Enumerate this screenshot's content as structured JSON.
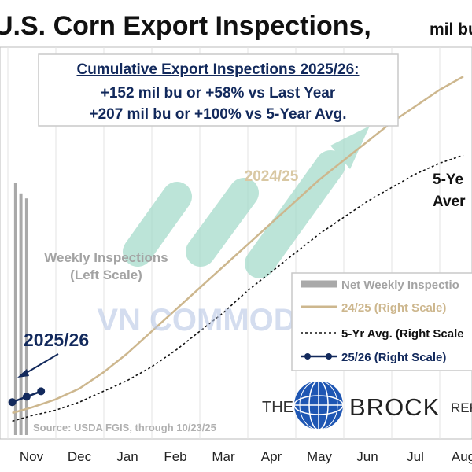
{
  "chart_data": {
    "type": "line",
    "title": "U.S. Corn Export Inspections,",
    "title_unit": "mil bu",
    "x_categories": [
      "Nov",
      "Dec",
      "Jan",
      "Feb",
      "Mar",
      "Apr",
      "May",
      "Jun",
      "Jul",
      "Aug"
    ],
    "grid": true,
    "callout": {
      "heading": "Cumulative Export Inspections 2025/26:",
      "line1": "+152 mil bu or +58% vs Last Year",
      "line2": "+207 mil bu or +100% vs 5-Year Avg."
    },
    "annotations": {
      "line_2425": "2024/25",
      "weekly_1": "Weekly Inspections",
      "weekly_2": "(Left Scale)",
      "line_2526": "2025/26",
      "avg_1": "5-Ye",
      "avg_2": "Aver"
    },
    "legend": {
      "placement": "bottom-right",
      "entries": [
        "Net Weekly Inspectio",
        "24/25 (Right Scale)",
        "5-Yr Avg. (Right Scale",
        "25/26 (Right Scale)"
      ]
    },
    "series": [
      {
        "name": "24/25 (Right Scale)",
        "style": "solid",
        "color": "#cdb78e",
        "x": [
          -0.4,
          0,
          0.5,
          1,
          1.5,
          2,
          2.5,
          3,
          3.5,
          4,
          4.5,
          5,
          5.5,
          6,
          6.5,
          7,
          7.5,
          8,
          8.5,
          9
        ],
        "y": [
          0,
          2,
          5,
          9,
          15,
          22,
          30,
          38,
          46,
          54,
          62,
          70,
          78,
          86,
          93,
          100,
          107,
          113,
          119,
          124
        ]
      },
      {
        "name": "5-Yr Avg. (Right Scale",
        "style": "dashed",
        "color": "#111111",
        "x": [
          -0.4,
          0,
          0.5,
          1,
          1.5,
          2,
          2.5,
          3,
          3.5,
          4,
          4.5,
          5,
          5.5,
          6,
          6.5,
          7,
          7.5,
          8,
          8.5,
          9
        ],
        "y": [
          -3,
          -1,
          1,
          4,
          8,
          12,
          17,
          23,
          30,
          37,
          45,
          52,
          59,
          66,
          72,
          78,
          83,
          88,
          92,
          95
        ]
      },
      {
        "name": "25/26 (Right Scale)",
        "style": "solid-markers",
        "color": "#12295c",
        "x": [
          -0.4,
          -0.1,
          0.2
        ],
        "y": [
          4,
          6,
          8
        ]
      }
    ],
    "weekly_bars": {
      "name": "Net Weekly Inspectio",
      "color": "#a9a9a9",
      "x": [
        -0.33,
        -0.22,
        -0.1
      ],
      "values": [
        100,
        96,
        94
      ]
    }
  },
  "watermark": "VN COMMODITIES",
  "brand": {
    "the": "THE",
    "name": "BROCK",
    "suffix": "REP"
  },
  "source": "Source: USDA FGIS, through 10/23/25",
  "colors": {
    "navy": "#12295c",
    "tan": "#cdb78e",
    "gray_bar": "#a9a9a9",
    "teal": "#9fd9c6",
    "globe": "#1e56b3"
  }
}
